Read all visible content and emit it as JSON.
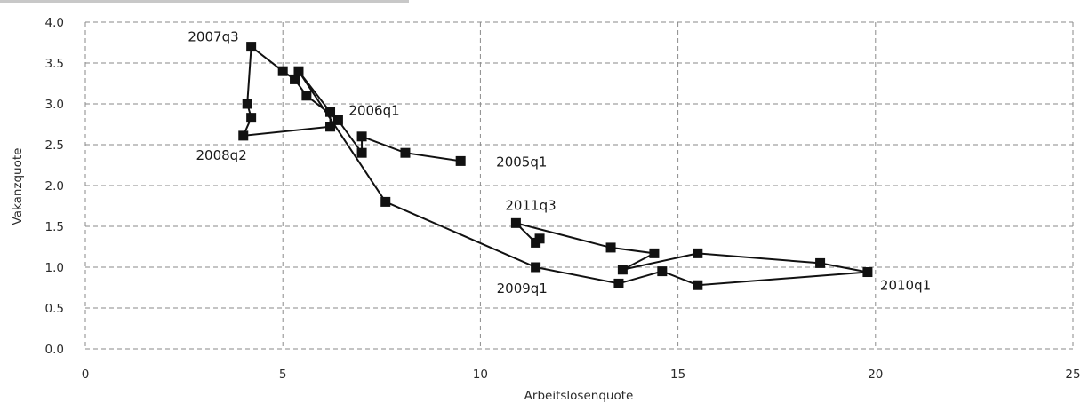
{
  "chart_data": {
    "type": "scatter",
    "xlabel": "Arbeitslosenquote",
    "ylabel": "Vakanzquote",
    "xlim": [
      0,
      25
    ],
    "ylim": [
      0.0,
      4.0
    ],
    "x_ticks": [
      "0",
      "5",
      "10",
      "15",
      "20",
      "25"
    ],
    "y_ticks": [
      "0.0",
      "0.5",
      "1.0",
      "1.5",
      "2.0",
      "2.5",
      "3.0",
      "3.5",
      "4.0"
    ],
    "grid": true,
    "series": [
      {
        "points": [
          {
            "x": 9.5,
            "y": 2.3
          },
          {
            "x": 8.1,
            "y": 2.4
          },
          {
            "x": 7.0,
            "y": 2.6
          },
          {
            "x": 7.0,
            "y": 2.4
          },
          {
            "x": 6.4,
            "y": 2.8
          },
          {
            "x": 5.6,
            "y": 3.1
          },
          {
            "x": 5.3,
            "y": 3.3
          },
          {
            "x": 5.0,
            "y": 3.4
          },
          {
            "x": 4.2,
            "y": 3.7
          },
          {
            "x": 4.1,
            "y": 3.0
          },
          {
            "x": 4.2,
            "y": 2.83
          },
          {
            "x": 4.0,
            "y": 2.61
          },
          {
            "x": 6.2,
            "y": 2.72
          },
          {
            "x": 6.2,
            "y": 2.9
          },
          {
            "x": 5.4,
            "y": 3.4
          },
          {
            "x": 7.6,
            "y": 1.8
          },
          {
            "x": 11.4,
            "y": 1.0
          },
          {
            "x": 13.5,
            "y": 0.8
          },
          {
            "x": 14.6,
            "y": 0.95
          },
          {
            "x": 15.5,
            "y": 0.78
          },
          {
            "x": 19.8,
            "y": 0.94
          },
          {
            "x": 18.6,
            "y": 1.05
          },
          {
            "x": 15.5,
            "y": 1.17
          },
          {
            "x": 13.6,
            "y": 0.97
          },
          {
            "x": 14.4,
            "y": 1.17
          },
          {
            "x": 13.3,
            "y": 1.24
          },
          {
            "x": 10.9,
            "y": 1.54
          },
          {
            "x": 11.4,
            "y": 1.3
          },
          {
            "x": 11.5,
            "y": 1.35
          }
        ]
      }
    ],
    "annotations": [
      {
        "text": "2005q1",
        "x": 9.5,
        "y": 2.3
      },
      {
        "text": "2006q1",
        "x": 6.4,
        "y": 2.8
      },
      {
        "text": "2007q3",
        "x": 4.2,
        "y": 3.7
      },
      {
        "text": "2008q2",
        "x": 4.0,
        "y": 2.61
      },
      {
        "text": "2009q1",
        "x": 11.4,
        "y": 1.0
      },
      {
        "text": "2010q1",
        "x": 19.8,
        "y": 0.94
      },
      {
        "text": "2011q3",
        "x": 10.9,
        "y": 1.54
      }
    ]
  }
}
